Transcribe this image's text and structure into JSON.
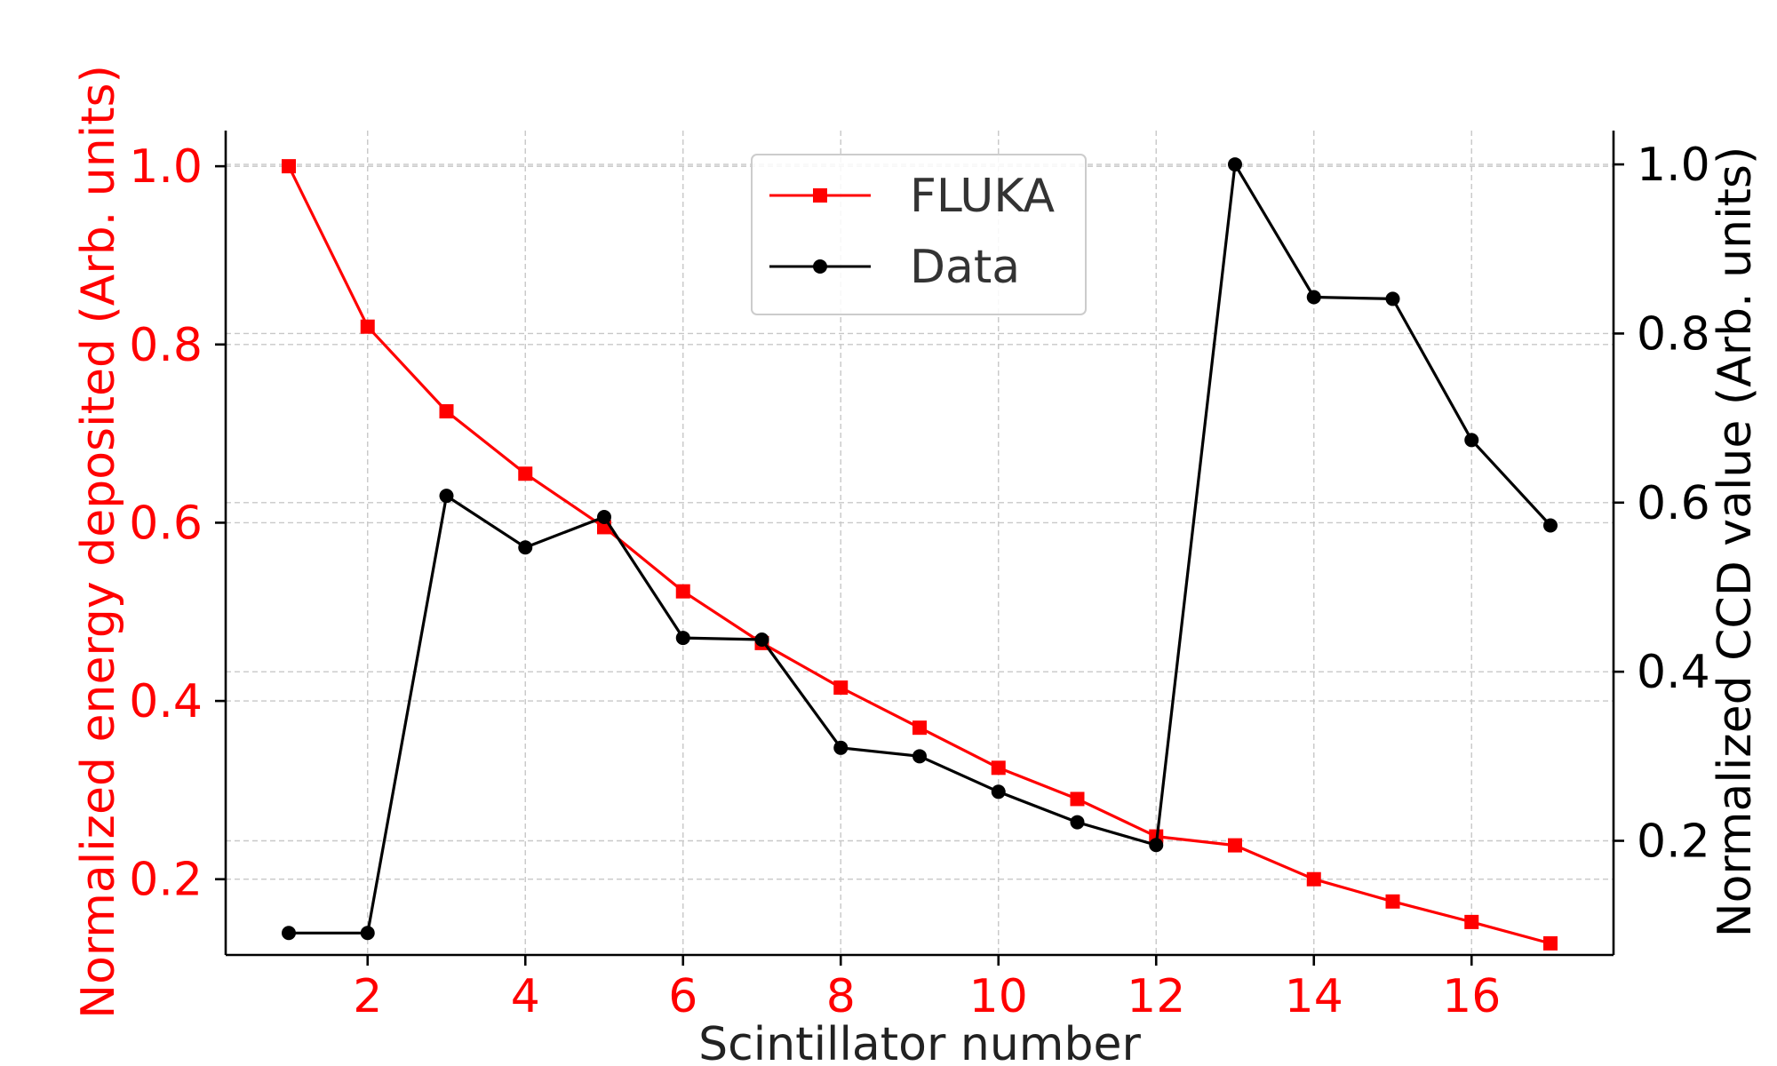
{
  "chart_data": {
    "type": "line",
    "xlabel": "Scintillator number",
    "ylabel_left": "Normalized energy deposited (Arb. units)",
    "ylabel_right": "Normalized CCD value (Arb. units)",
    "x_ticks": [
      "2",
      "4",
      "6",
      "8",
      "10",
      "12",
      "14",
      "16"
    ],
    "y_left_ticks": [
      "0.2",
      "0.4",
      "0.6",
      "0.8",
      "1.0"
    ],
    "y_right_ticks": [
      "0.2",
      "0.4",
      "0.6",
      "0.8",
      "1.0"
    ],
    "xlim": [
      0.2,
      17.8
    ],
    "ylim_left": [
      0.115,
      1.04
    ],
    "ylim_right": [
      0.065,
      1.04
    ],
    "grid": true,
    "legend_position": "top-center",
    "series": [
      {
        "name": "FLUKA",
        "axis": "left",
        "color": "#ff0000",
        "marker": "square",
        "x": [
          1,
          2,
          3,
          4,
          5,
          6,
          7,
          8,
          9,
          10,
          11,
          12,
          13,
          14,
          15,
          16,
          17
        ],
        "values": [
          1.0,
          0.82,
          0.725,
          0.655,
          0.595,
          0.523,
          0.465,
          0.415,
          0.37,
          0.325,
          0.29,
          0.248,
          0.238,
          0.2,
          0.175,
          0.152,
          0.128
        ]
      },
      {
        "name": "Data",
        "axis": "right",
        "color": "#000000",
        "marker": "circle",
        "x": [
          1,
          2,
          3,
          4,
          5,
          6,
          7,
          8,
          9,
          10,
          11,
          12,
          13,
          14,
          15,
          16,
          17
        ],
        "values": [
          0.091,
          0.091,
          0.608,
          0.547,
          0.583,
          0.44,
          0.438,
          0.31,
          0.3,
          0.258,
          0.222,
          0.195,
          1.0,
          0.843,
          0.841,
          0.674,
          0.573
        ]
      }
    ]
  }
}
